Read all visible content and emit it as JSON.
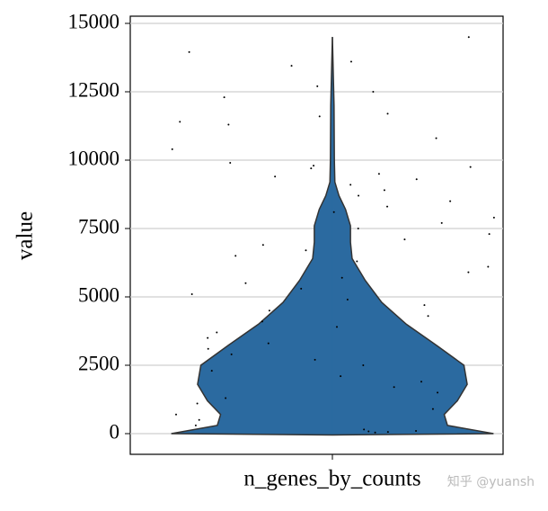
{
  "chart_data": {
    "type": "violin",
    "xlabel": "n_genes_by_counts",
    "ylabel": "value",
    "watermark": "知乎 @yuansh",
    "ylim": [
      -757,
      15263
    ],
    "yticks": [
      0,
      2500,
      5000,
      7500,
      10000,
      12500,
      15000
    ],
    "grid": true,
    "color": "#2b6aa0",
    "violin": {
      "y": [
        -50,
        0,
        300,
        700,
        1200,
        1800,
        2500,
        3200,
        4000,
        4800,
        5600,
        6400,
        7000,
        7600,
        8200,
        8700,
        9200,
        10000,
        12000,
        14500
      ],
      "density": [
        0,
        0.98,
        0.7,
        0.68,
        0.76,
        0.82,
        0.8,
        0.64,
        0.45,
        0.3,
        0.2,
        0.12,
        0.11,
        0.11,
        0.08,
        0.04,
        0.015,
        0.012,
        0.01,
        0
      ]
    },
    "points": {
      "color": "#000000",
      "values": [
        14500,
        13950,
        13600,
        13450,
        12700,
        12500,
        12300,
        11700,
        11600,
        11400,
        11300,
        10800,
        10400,
        9900,
        9800,
        9750,
        9700,
        9500,
        9400,
        9300,
        9100,
        8900,
        8700,
        8500,
        8300,
        8100,
        7900,
        7700,
        7500,
        7300,
        7100,
        6900,
        6700,
        6500,
        6300,
        6100,
        5900,
        5700,
        5500,
        5300,
        5100,
        4900,
        4700,
        4500,
        4300,
        4100,
        3900,
        3700,
        3500,
        3300,
        3100,
        2900,
        2700,
        2500,
        2300,
        2100,
        1900,
        1700,
        1500,
        1300,
        1100,
        900,
        700,
        500,
        300,
        150,
        100,
        80,
        60,
        40
      ]
    }
  }
}
